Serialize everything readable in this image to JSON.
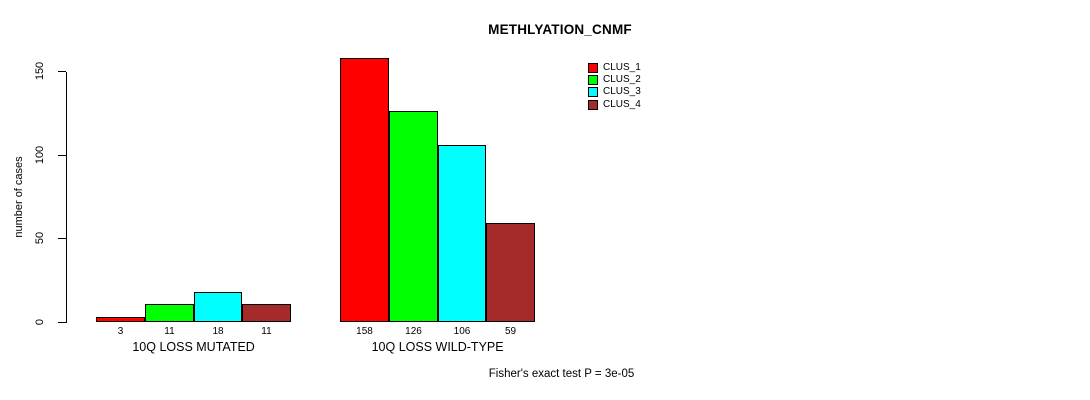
{
  "title": "METHLYATION_CNMF",
  "footer": "Fisher's exact test P = 3e-05",
  "legend": [
    {
      "label": "CLUS_1",
      "color": "#FF0000"
    },
    {
      "label": "CLUS_2",
      "color": "#00FF00"
    },
    {
      "label": "CLUS_3",
      "color": "#00FFFF"
    },
    {
      "label": "CLUS_4",
      "color": "#A52A2A"
    }
  ],
  "chart_data": {
    "type": "bar",
    "title": "METHLYATION_CNMF",
    "xlabel": "",
    "ylabel": "number of cases",
    "ylim": [
      0,
      150
    ],
    "yticks": [
      0,
      50,
      100,
      150
    ],
    "grid": false,
    "legend_position": "top-right",
    "categories": [
      "10Q LOSS MUTATED",
      "10Q LOSS WILD-TYPE"
    ],
    "series": [
      {
        "name": "CLUS_1",
        "color": "#FF0000",
        "values": [
          3,
          158
        ]
      },
      {
        "name": "CLUS_2",
        "color": "#00FF00",
        "values": [
          11,
          126
        ]
      },
      {
        "name": "CLUS_3",
        "color": "#00FFFF",
        "values": [
          18,
          106
        ]
      },
      {
        "name": "CLUS_4",
        "color": "#A52A2A",
        "values": [
          11,
          59
        ]
      }
    ],
    "bar_value_labels": [
      [
        3,
        11,
        18,
        11
      ],
      [
        158,
        126,
        106,
        59
      ]
    ],
    "annotation": "Fisher's exact test P = 3e-05"
  }
}
